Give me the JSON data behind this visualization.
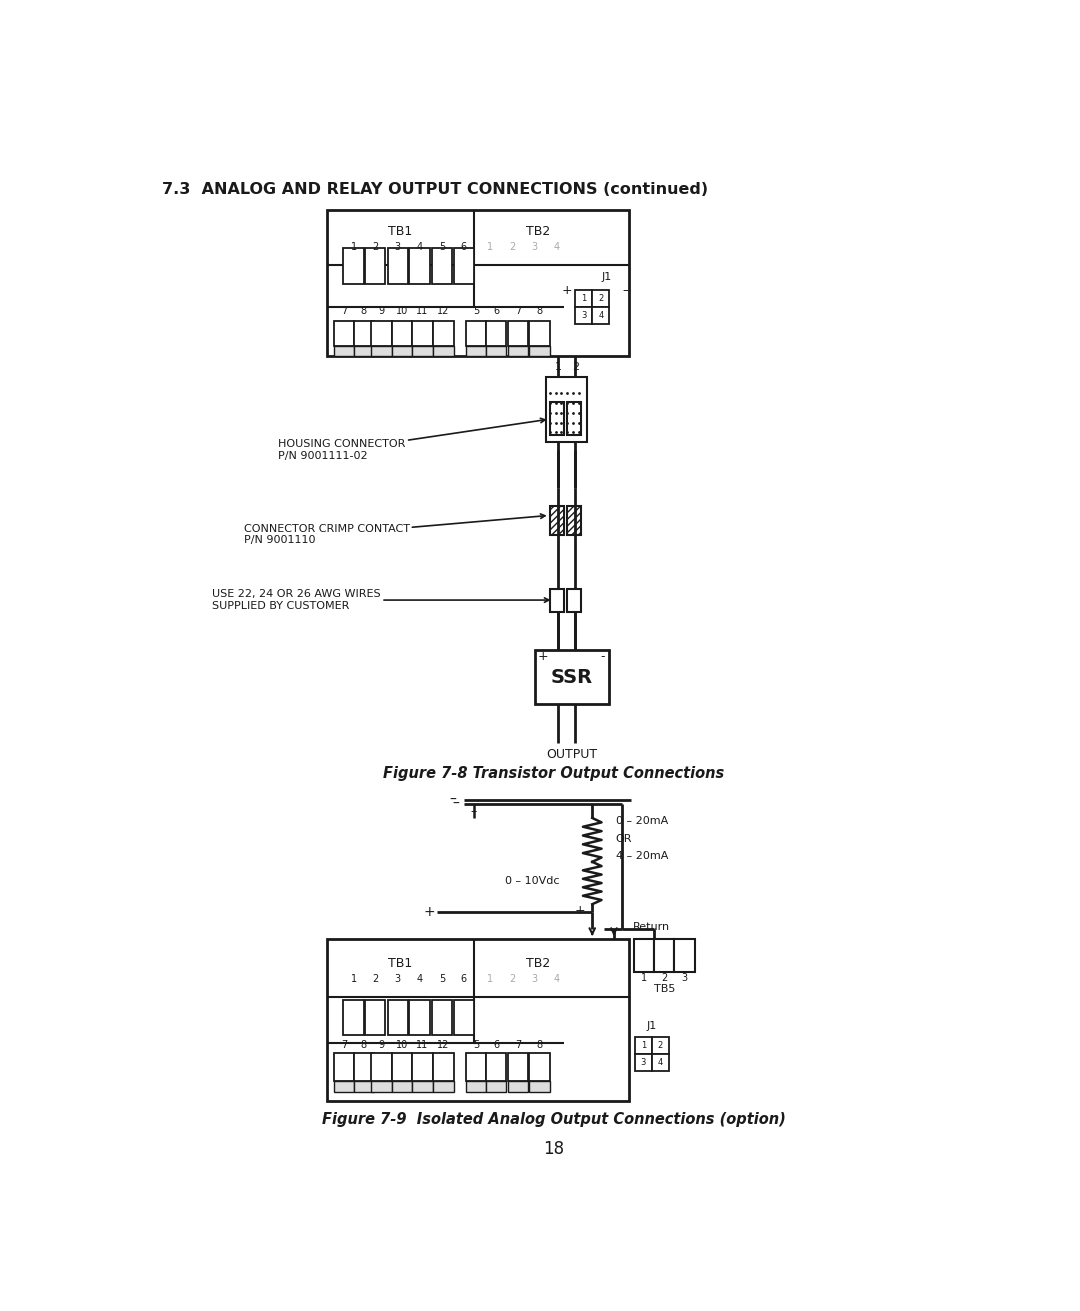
{
  "title": "7.3  ANALOG AND RELAY OUTPUT CONNECTIONS (continued)",
  "fig8_caption": "Figure 7-8 Transistor Output Connections",
  "fig9_caption": "Figure 7-9  Isolated Analog Output Connections (option)",
  "page_number": "18",
  "bg_color": "#ffffff",
  "line_color": "#1a1a1a",
  "text_color": "#1a1a1a",
  "gray_text": "#aaaaaa"
}
